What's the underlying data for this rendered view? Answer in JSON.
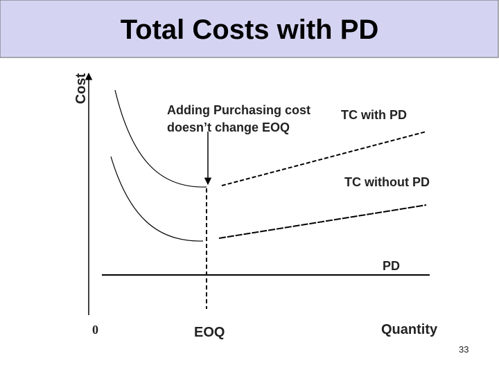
{
  "title": "Total Costs with PD",
  "y_axis_label": "Cost",
  "annotation": [
    "Adding Purchasing cost",
    "doesn’t change EOQ"
  ],
  "curve_labels": {
    "with_pd": "TC with PD",
    "without_pd": "TC without PD",
    "pd": "PD"
  },
  "x_axis": {
    "origin": "0",
    "eoq": "EOQ",
    "label": "Quantity"
  },
  "page_number": "33"
}
